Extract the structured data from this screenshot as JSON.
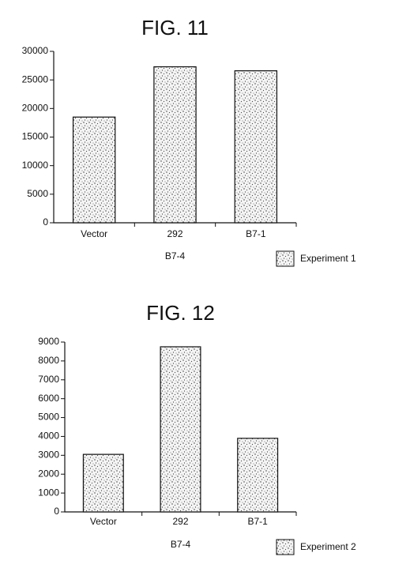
{
  "chart_data": [
    {
      "type": "bar",
      "title": "FIG. 11",
      "categories": [
        "Vector",
        "292",
        "B7-1"
      ],
      "series": [
        {
          "name": "Experiment 1",
          "values": [
            18500,
            27300,
            26600
          ]
        }
      ],
      "x_label": "B7-4",
      "ylim": [
        0,
        30000
      ],
      "yticks": [
        0,
        5000,
        10000,
        15000,
        20000,
        25000,
        30000
      ]
    },
    {
      "type": "bar",
      "title": "FIG. 12",
      "categories": [
        "Vector",
        "292",
        "B7-1"
      ],
      "series": [
        {
          "name": "Experiment 2",
          "values": [
            3050,
            8750,
            3900
          ]
        }
      ],
      "x_label": "B7-4",
      "ylim": [
        0,
        9000
      ],
      "yticks": [
        0,
        1000,
        2000,
        3000,
        4000,
        5000,
        6000,
        7000,
        8000,
        9000
      ]
    }
  ]
}
